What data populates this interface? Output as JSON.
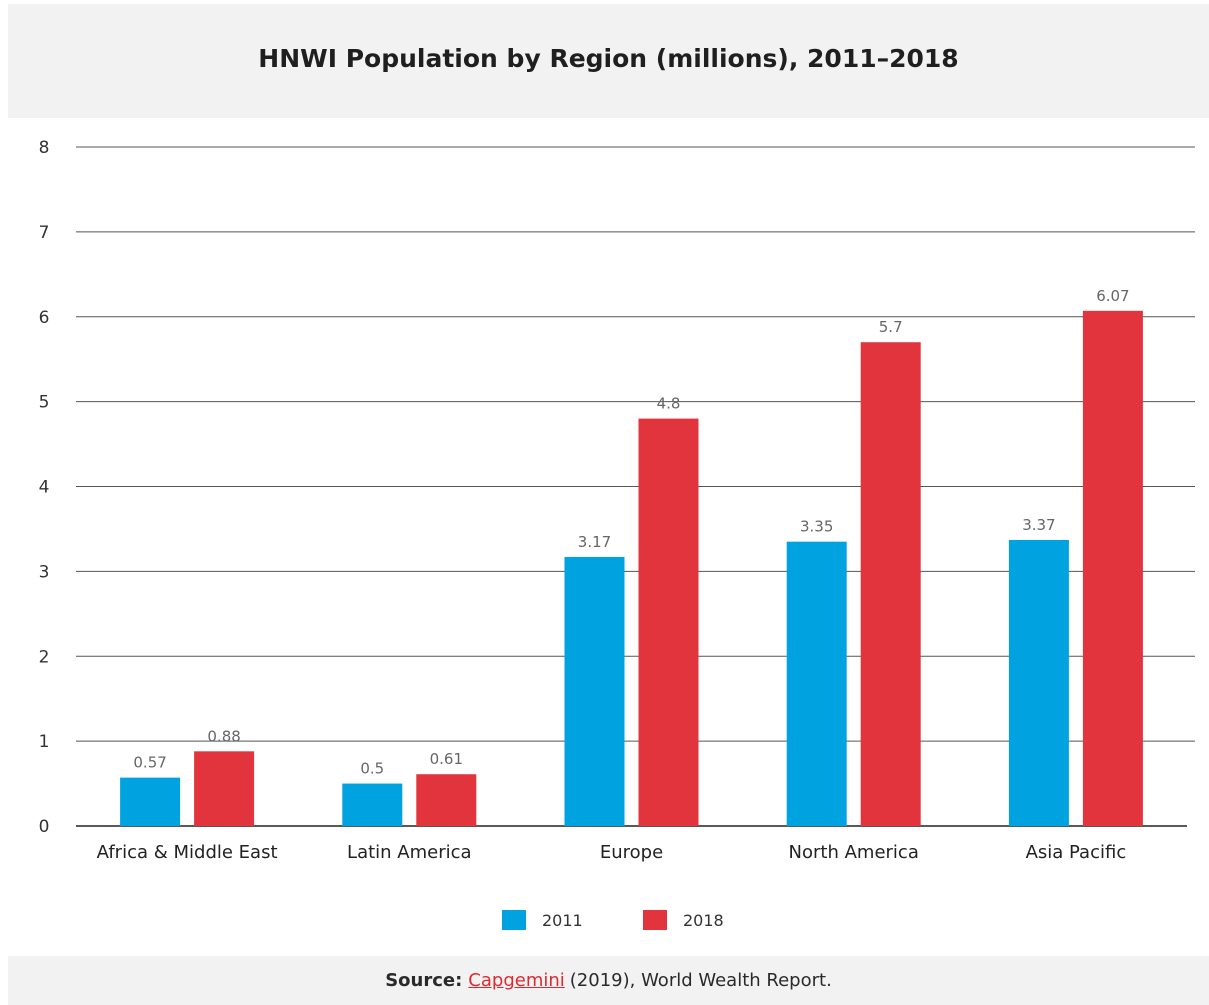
{
  "chart_data": {
    "type": "bar",
    "title": "HNWI Population by Region (millions), 2011–2018",
    "xlabel": "",
    "ylabel": "",
    "ylim": [
      0,
      8
    ],
    "yticks": [
      0,
      1,
      2,
      3,
      4,
      5,
      6,
      7,
      8
    ],
    "grid": true,
    "legend_position": "bottom-center",
    "categories": [
      "Africa & Middle East",
      "Latin America",
      "Europe",
      "North America",
      "Asia Pacific"
    ],
    "series": [
      {
        "name": "2011",
        "color": "#00a3e0",
        "values": [
          0.57,
          0.5,
          3.17,
          3.35,
          3.37
        ]
      },
      {
        "name": "2018",
        "color": "#e2343c",
        "values": [
          0.88,
          0.61,
          4.8,
          5.7,
          6.07
        ]
      }
    ],
    "data_labels": [
      [
        "0.57",
        "0.5",
        "3.17",
        "3.35",
        "3.37"
      ],
      [
        "0.88",
        "0.61",
        "4.8",
        "5.7",
        "6.07"
      ]
    ]
  },
  "footer": {
    "source_label": "Source:",
    "source_link": "Capgemini",
    "source_rest": "(2019), World Wealth Report."
  }
}
